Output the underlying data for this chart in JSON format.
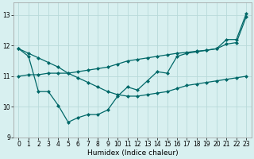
{
  "line1_x": [
    0,
    1,
    2,
    3,
    4,
    5,
    6,
    7,
    8,
    9,
    10,
    11,
    12,
    13,
    14,
    15,
    16,
    17,
    18,
    19,
    20,
    21,
    22,
    23
  ],
  "line1_y": [
    11.9,
    11.75,
    11.6,
    11.45,
    11.3,
    11.1,
    10.95,
    10.8,
    10.65,
    10.5,
    10.4,
    10.35,
    10.35,
    10.4,
    10.45,
    10.5,
    10.6,
    10.7,
    10.75,
    10.8,
    10.85,
    10.9,
    10.95,
    11.0
  ],
  "line2_x": [
    0,
    1,
    2,
    3,
    4,
    5,
    6,
    7,
    8,
    9,
    10,
    11,
    12,
    13,
    14,
    15,
    16,
    17,
    18,
    19,
    20,
    21,
    22,
    23
  ],
  "line2_y": [
    11.9,
    11.65,
    10.5,
    10.5,
    10.05,
    9.5,
    9.65,
    9.75,
    9.75,
    9.9,
    10.35,
    10.65,
    10.55,
    10.85,
    11.15,
    11.1,
    11.65,
    11.75,
    11.8,
    11.85,
    11.9,
    12.2,
    12.2,
    13.05
  ],
  "line3_x": [
    0,
    1,
    2,
    3,
    4,
    5,
    6,
    7,
    8,
    9,
    10,
    11,
    12,
    13,
    14,
    15,
    16,
    17,
    18,
    19,
    20,
    21,
    22,
    23
  ],
  "line3_y": [
    11.0,
    11.05,
    11.05,
    11.1,
    11.1,
    11.1,
    11.15,
    11.2,
    11.25,
    11.3,
    11.4,
    11.5,
    11.55,
    11.6,
    11.65,
    11.7,
    11.75,
    11.78,
    11.82,
    11.85,
    11.9,
    12.05,
    12.1,
    12.95
  ],
  "line_color": "#006868",
  "marker": "D",
  "marker_size": 2.5,
  "line_width": 0.9,
  "bg_color": "#d8f0f0",
  "grid_color": "#b8dada",
  "xlabel": "Humidex (Indice chaleur)",
  "ylim": [
    9.0,
    13.4
  ],
  "xlim": [
    -0.5,
    23.5
  ],
  "yticks": [
    9,
    10,
    11,
    12,
    13
  ],
  "xticks": [
    0,
    1,
    2,
    3,
    4,
    5,
    6,
    7,
    8,
    9,
    10,
    11,
    12,
    13,
    14,
    15,
    16,
    17,
    18,
    19,
    20,
    21,
    22,
    23
  ],
  "label_fontsize": 6.5,
  "tick_fontsize": 5.5
}
